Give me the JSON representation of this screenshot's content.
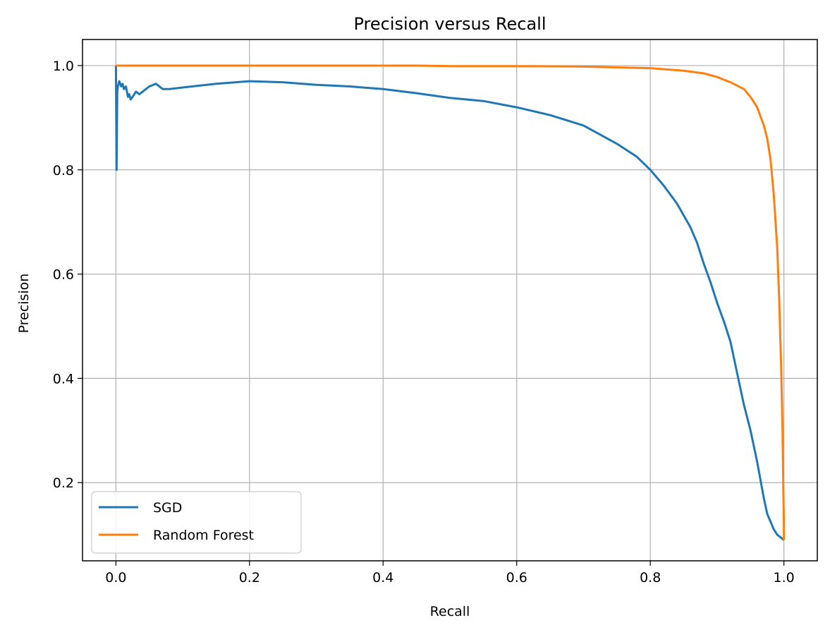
{
  "chart_data": {
    "type": "line",
    "title": "Precision versus Recall",
    "xlabel": "Recall",
    "ylabel": "Precision",
    "xlim": [
      -0.05,
      1.05
    ],
    "ylim": [
      0.05,
      1.05
    ],
    "xticks": [
      0.0,
      0.2,
      0.4,
      0.6,
      0.8,
      1.0
    ],
    "xtick_labels": [
      "0.0",
      "0.2",
      "0.4",
      "0.6",
      "0.8",
      "1.0"
    ],
    "yticks": [
      0.2,
      0.4,
      0.6,
      0.8,
      1.0
    ],
    "ytick_labels": [
      "0.2",
      "0.4",
      "0.6",
      "0.8",
      "1.0"
    ],
    "grid": true,
    "legend_position": "lower-left",
    "series": [
      {
        "name": "SGD",
        "color": "#1f77b4",
        "x": [
          0.0,
          0.001,
          0.002,
          0.003,
          0.005,
          0.008,
          0.01,
          0.012,
          0.015,
          0.018,
          0.02,
          0.022,
          0.025,
          0.03,
          0.035,
          0.04,
          0.05,
          0.06,
          0.07,
          0.08,
          0.1,
          0.15,
          0.2,
          0.25,
          0.3,
          0.35,
          0.4,
          0.45,
          0.5,
          0.55,
          0.6,
          0.65,
          0.7,
          0.75,
          0.78,
          0.8,
          0.82,
          0.84,
          0.86,
          0.87,
          0.88,
          0.89,
          0.9,
          0.91,
          0.92,
          0.93,
          0.94,
          0.95,
          0.96,
          0.97,
          0.975,
          0.98,
          0.985,
          0.99,
          0.995,
          1.0
        ],
        "y": [
          1.0,
          0.8,
          0.95,
          0.96,
          0.97,
          0.96,
          0.965,
          0.955,
          0.96,
          0.94,
          0.945,
          0.935,
          0.94,
          0.95,
          0.945,
          0.95,
          0.96,
          0.965,
          0.955,
          0.955,
          0.958,
          0.965,
          0.97,
          0.968,
          0.963,
          0.96,
          0.955,
          0.947,
          0.938,
          0.932,
          0.92,
          0.905,
          0.885,
          0.85,
          0.825,
          0.8,
          0.77,
          0.735,
          0.69,
          0.66,
          0.62,
          0.585,
          0.545,
          0.51,
          0.47,
          0.41,
          0.35,
          0.3,
          0.24,
          0.17,
          0.14,
          0.125,
          0.11,
          0.1,
          0.095,
          0.09
        ]
      },
      {
        "name": "Random Forest",
        "color": "#ff7f0e",
        "x": [
          0.0,
          0.1,
          0.2,
          0.3,
          0.4,
          0.45,
          0.5,
          0.6,
          0.7,
          0.8,
          0.85,
          0.88,
          0.9,
          0.92,
          0.94,
          0.95,
          0.96,
          0.97,
          0.975,
          0.98,
          0.985,
          0.99,
          0.993,
          0.996,
          0.998,
          0.999,
          1.0,
          1.0
        ],
        "y": [
          1.0,
          1.0,
          1.0,
          1.0,
          1.0,
          1.0,
          0.999,
          0.999,
          0.998,
          0.995,
          0.99,
          0.985,
          0.978,
          0.968,
          0.955,
          0.94,
          0.92,
          0.885,
          0.86,
          0.82,
          0.75,
          0.65,
          0.55,
          0.42,
          0.3,
          0.2,
          0.12,
          0.09
        ]
      }
    ]
  }
}
